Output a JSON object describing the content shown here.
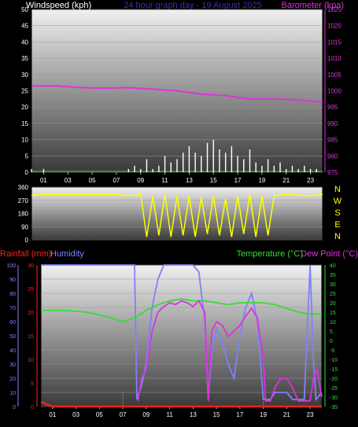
{
  "chart_data": [
    {
      "type": "line",
      "title": "24 hour graph day - 19 August 2025",
      "ylabel_left": "Windspeed (kph)",
      "ylabel_right": "Barometer (kpa)",
      "left_ticks": [
        "0",
        "5",
        "10",
        "15",
        "20",
        "25",
        "30",
        "35",
        "40",
        "45",
        "50"
      ],
      "right_ticks": [
        "975",
        "980",
        "985",
        "990",
        "995",
        "1000",
        "1005",
        "1010",
        "1015",
        "1020",
        "1025"
      ],
      "x_ticks": [
        "01",
        "03",
        "05",
        "07",
        "09",
        "11",
        "13",
        "15",
        "17",
        "19",
        "21",
        "23"
      ],
      "ylim_left": [
        0,
        50
      ],
      "ylim_right": [
        975,
        1025
      ],
      "colors": {
        "windspeed": "#ffffff",
        "barometer": "#dd33dd",
        "left_label": "#ffffff",
        "right_label": "#dd33dd",
        "title": "#3333aa"
      },
      "series": [
        {
          "name": "Barometer",
          "axis": "right",
          "x": [
            0,
            2,
            4,
            6,
            8,
            10,
            12,
            14,
            16,
            18,
            20,
            22,
            24
          ],
          "values": [
            1001.5,
            1001.5,
            1001,
            1000.8,
            1001,
            1000.5,
            1000,
            999,
            998.5,
            997.5,
            997.5,
            997.2,
            996.5
          ]
        },
        {
          "name": "Windspeed",
          "axis": "left",
          "x": [
            0,
            0.5,
            1,
            1.5,
            2,
            7.5,
            8,
            8.5,
            9,
            9.5,
            10,
            10.5,
            11,
            11.5,
            12,
            12.5,
            13,
            13.5,
            14,
            14.5,
            15,
            15.5,
            16,
            16.5,
            17,
            17.5,
            18,
            18.5,
            19,
            19.5,
            20,
            20.5,
            21,
            21.5,
            22,
            22.5,
            23,
            23.5
          ],
          "values": [
            1,
            0,
            1,
            0,
            0,
            0,
            1,
            2,
            1,
            4,
            1,
            2,
            5,
            3,
            4,
            6,
            8,
            6,
            5,
            9,
            10,
            7,
            6,
            8,
            5,
            4,
            7,
            3,
            2,
            4,
            2,
            3,
            1,
            2,
            1,
            2,
            1,
            1
          ]
        }
      ]
    },
    {
      "type": "line",
      "ylabel_left": "",
      "left_ticks": [
        "0",
        "90",
        "180",
        "270",
        "360"
      ],
      "right_labels": [
        "N",
        "W",
        "S",
        "E",
        "N"
      ],
      "ylim_left": [
        0,
        360
      ],
      "colors": {
        "direction": "#ffff00"
      },
      "series": [
        {
          "name": "Wind direction",
          "x": [
            0,
            1,
            2,
            3,
            4,
            5,
            6,
            7,
            8,
            9,
            9.5,
            10,
            10.5,
            11,
            11.5,
            12,
            12.5,
            13,
            13.5,
            14,
            14.5,
            15,
            15.5,
            16,
            16.5,
            17,
            17.5,
            18,
            18.5,
            19,
            19.5,
            20,
            21,
            22,
            23,
            24
          ],
          "values": [
            305,
            310,
            310,
            310,
            310,
            310,
            310,
            310,
            300,
            310,
            20,
            300,
            30,
            310,
            20,
            300,
            30,
            300,
            20,
            290,
            40,
            300,
            30,
            280,
            20,
            300,
            40,
            310,
            20,
            300,
            30,
            300,
            310,
            305,
            300,
            310
          ]
        }
      ]
    },
    {
      "type": "line",
      "ylabel_left": "Rainfall (mm)",
      "ylabel_left2": "Humidity",
      "ylabel_right": "Temperature (°C)",
      "ylabel_right2": "Dew Point (°C)",
      "rain_ticks": [
        "0",
        "5",
        "10",
        "15",
        "20",
        "25",
        "30"
      ],
      "humidity_ticks": [
        "0",
        "10",
        "20",
        "30",
        "40",
        "50",
        "60",
        "70",
        "80",
        "90",
        "100"
      ],
      "temp_ticks": [
        "40",
        "35",
        "30",
        "25",
        "20",
        "15",
        "10",
        "5",
        "0",
        "-5",
        "-10",
        "-15",
        "-20",
        "-25",
        "-30",
        "-35"
      ],
      "x_ticks": [
        "01",
        "03",
        "05",
        "07",
        "09",
        "11",
        "13",
        "15",
        "17",
        "19",
        "21",
        "23"
      ],
      "ylim_humidity": [
        0,
        100
      ],
      "ylim_rain": [
        0,
        30
      ],
      "ylim_temp": [
        -35,
        40
      ],
      "colors": {
        "rain": "#ff2020",
        "humidity": "#8080ff",
        "temperature": "#33dd33",
        "dewpoint": "#dd33dd",
        "rain_label": "#ff2020",
        "humidity_label": "#8080ff",
        "temp_label": "#33dd33",
        "dew_label": "#dd33dd"
      },
      "series": [
        {
          "name": "Humidity",
          "axis": "humidity",
          "x": [
            0,
            1,
            2,
            3,
            4,
            5,
            6,
            7,
            8,
            8.2,
            8.6,
            9,
            9.5,
            10,
            10.5,
            11,
            12,
            13,
            13.5,
            14,
            14.3,
            14.6,
            15,
            15.5,
            16,
            16.5,
            17,
            17.5,
            18,
            18.5,
            19,
            19.2,
            19.6,
            20,
            20.5,
            21,
            21.5,
            22,
            22.5,
            23,
            23.3,
            23.5,
            24
          ],
          "values": [
            100,
            100,
            100,
            100,
            100,
            100,
            100,
            100,
            100,
            5,
            15,
            30,
            70,
            90,
            100,
            100,
            100,
            100,
            95,
            60,
            5,
            40,
            55,
            45,
            30,
            20,
            50,
            70,
            80,
            60,
            5,
            5,
            5,
            10,
            10,
            10,
            5,
            5,
            5,
            100,
            30,
            5,
            10
          ]
        },
        {
          "name": "Temperature",
          "axis": "temp",
          "x": [
            0,
            2,
            4,
            6,
            7,
            8,
            9,
            10,
            11,
            12,
            13,
            14,
            15,
            16,
            17,
            18,
            19,
            20,
            21,
            22,
            23,
            24
          ],
          "values": [
            16,
            16,
            15,
            12,
            10,
            12,
            16,
            19,
            21,
            22,
            21,
            21,
            20,
            19,
            20,
            20,
            20,
            19,
            17,
            15,
            14,
            14
          ]
        },
        {
          "name": "Dew Point",
          "axis": "temp",
          "x": [
            8.3,
            8.6,
            9,
            9.5,
            10,
            10.5,
            11,
            11.5,
            12,
            12.5,
            13,
            13.5,
            14,
            14.3,
            14.6,
            15,
            15.5,
            16,
            16.5,
            17,
            17.5,
            18,
            18.5,
            19,
            19.2,
            19.6,
            20,
            20.5,
            21,
            21.5,
            22,
            22.5,
            23,
            23.3,
            23.6,
            24
          ],
          "values": [
            -32,
            -20,
            -15,
            5,
            15,
            18,
            20,
            19,
            21,
            20,
            18,
            21,
            15,
            -32,
            5,
            10,
            8,
            2,
            5,
            8,
            13,
            17,
            12,
            -10,
            -32,
            -32,
            -25,
            -20,
            -20,
            -25,
            -32,
            -32,
            -32,
            -20,
            -15,
            -30
          ]
        },
        {
          "name": "Rainfall",
          "axis": "rain",
          "x": [
            0,
            1,
            2,
            24
          ],
          "values": [
            1,
            0,
            0,
            0
          ]
        }
      ]
    }
  ]
}
